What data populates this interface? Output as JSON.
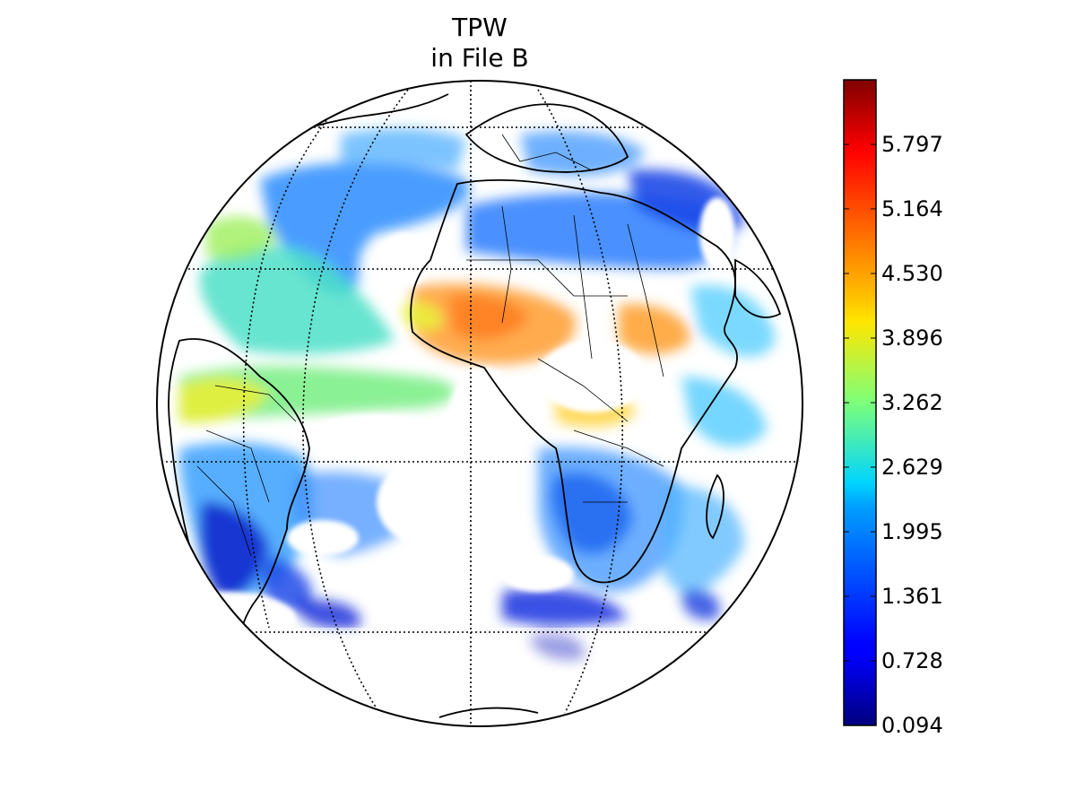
{
  "title": {
    "line1": "TPW",
    "line2": "in File B"
  },
  "colorbar": {
    "colormap": "jet",
    "ticks": [
      "5.797",
      "5.164",
      "4.530",
      "3.896",
      "3.262",
      "2.629",
      "1.995",
      "1.361",
      "0.728",
      "0.094"
    ],
    "tick_values": [
      5.797,
      5.164,
      4.53,
      3.896,
      3.262,
      2.629,
      1.995,
      1.361,
      0.728,
      0.094
    ],
    "range": [
      0.094,
      6.431
    ]
  },
  "map": {
    "projection": "orthographic",
    "graticule": "dotted",
    "features": [
      "coastlines",
      "country-borders",
      "tpw-field"
    ]
  }
}
